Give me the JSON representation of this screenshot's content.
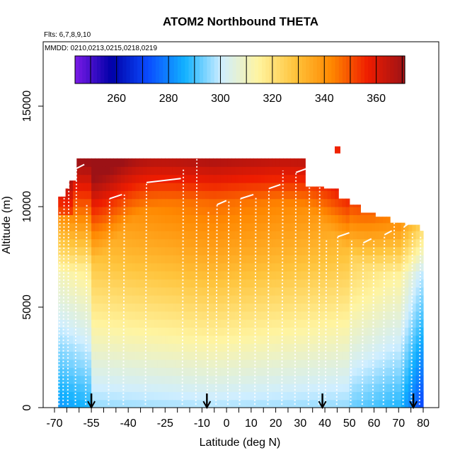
{
  "chart_data": {
    "type": "heatmap",
    "title": "ATOM2 Northbound THETA",
    "subtitle_flights": "Flts: 6,7,8,9,10",
    "subtitle_dates": "MMDD: 0210,0213,0215,0218,0219",
    "xlabel": "Latitude (deg N)",
    "ylabel": "Altitude (m)",
    "x_axis": {
      "tick_labels": [
        "-70",
        "-55",
        "-40",
        "-25",
        "-10",
        "0",
        "10",
        "20",
        "30",
        "40",
        "50",
        "60",
        "70",
        "80"
      ],
      "tick_values": [
        -70,
        -55,
        -40,
        -25,
        -10,
        0,
        10,
        20,
        30,
        40,
        50,
        60,
        70,
        80
      ],
      "minor_ticks": [
        -65,
        -60,
        -50,
        -45,
        -35,
        -30,
        -20,
        -15,
        -5,
        5,
        15,
        25,
        35,
        45,
        55,
        65,
        75
      ]
    },
    "y_axis": {
      "tick_labels": [
        "0",
        "5000",
        "10000",
        "15000"
      ],
      "tick_values": [
        0,
        5000,
        10000,
        15000
      ],
      "range": [
        0,
        17500
      ]
    },
    "colorbar": {
      "tick_labels": [
        "260",
        "280",
        "300",
        "320",
        "340",
        "360"
      ],
      "tick_values": [
        260,
        280,
        300,
        320,
        340,
        360
      ],
      "range": [
        244,
        371
      ],
      "colors": [
        "#7a1ae6",
        "#0000a8",
        "#0a4cff",
        "#12b2ff",
        "#cfeeff",
        "#fff4a0",
        "#ffc43c",
        "#ff8800",
        "#ee1c00",
        "#9c1216"
      ]
    },
    "field_description": "Potential temperature curtain vs latitude and altitude",
    "sounding_markers_lat": [
      -55,
      -8,
      39,
      76
    ],
    "grid": false
  }
}
